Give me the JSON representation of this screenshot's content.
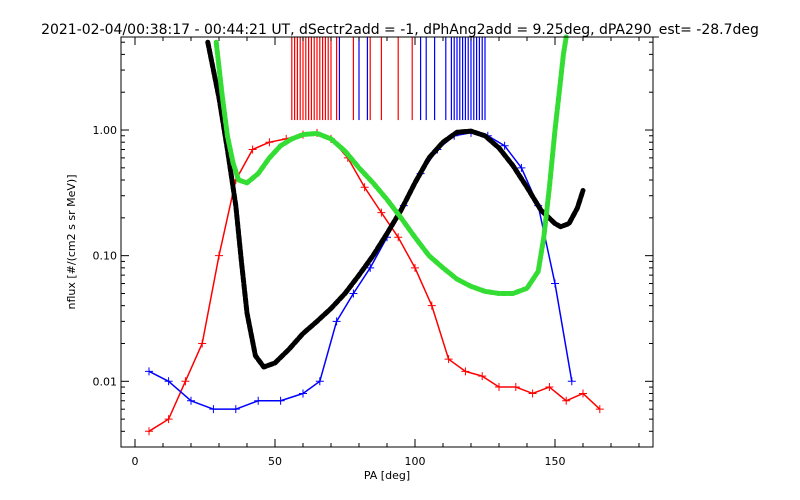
{
  "chart_data": {
    "type": "line",
    "title": "2021-02-04/00:38:17 - 00:44:21 UT, dSectr2add = -1, dPhAng2add = 9.25deg, dPA290_est= -28.7deg",
    "xlabel": "PA [deg]",
    "ylabel": "nflux [#/(cm2 s sr MeV)]",
    "xlim": [
      -5,
      185
    ],
    "ylim": [
      0.003,
      5.5
    ],
    "yscale": "log",
    "xticks": [
      "0",
      "50",
      "100",
      "150"
    ],
    "yticks": [
      "1.00",
      "0.10",
      "0.01"
    ],
    "grid": false,
    "series": [
      {
        "color": "#ff0000",
        "style": "lines with plus markers",
        "x": [
          5,
          12,
          18,
          24,
          30,
          36,
          42,
          48,
          54,
          60,
          65,
          70,
          76,
          82,
          88,
          94,
          100,
          106,
          112,
          118,
          124,
          130,
          136,
          142,
          148,
          154,
          160,
          166
        ],
        "values": [
          0.004,
          0.005,
          0.01,
          0.02,
          0.1,
          0.4,
          0.7,
          0.8,
          0.85,
          0.92,
          0.95,
          0.85,
          0.6,
          0.35,
          0.22,
          0.14,
          0.08,
          0.04,
          0.015,
          0.012,
          0.011,
          0.009,
          0.009,
          0.008,
          0.009,
          0.007,
          0.008,
          0.006
        ]
      },
      {
        "color": "#0000ff",
        "style": "lines with plus markers",
        "x": [
          5,
          12,
          20,
          28,
          36,
          44,
          52,
          60,
          66,
          72,
          78,
          84,
          90,
          96,
          102,
          108,
          114,
          120,
          126,
          132,
          138,
          144,
          150,
          156
        ],
        "values": [
          0.012,
          0.01,
          0.007,
          0.006,
          0.006,
          0.007,
          0.007,
          0.008,
          0.01,
          0.03,
          0.05,
          0.08,
          0.14,
          0.25,
          0.45,
          0.7,
          0.9,
          0.95,
          0.9,
          0.75,
          0.5,
          0.25,
          0.06,
          0.01
        ]
      },
      {
        "color": "#000000",
        "style": "thick dashed",
        "x": [
          26,
          30,
          33,
          36,
          38,
          40,
          43,
          46,
          50,
          55,
          60,
          65,
          70,
          75,
          80,
          85,
          90,
          95,
          100,
          105,
          110,
          115,
          120,
          125,
          130,
          135,
          140,
          145,
          150,
          152,
          155,
          158,
          160
        ],
        "values": [
          5.0,
          1.8,
          0.7,
          0.25,
          0.09,
          0.035,
          0.016,
          0.013,
          0.014,
          0.018,
          0.024,
          0.03,
          0.038,
          0.05,
          0.07,
          0.1,
          0.15,
          0.23,
          0.38,
          0.6,
          0.8,
          0.96,
          0.98,
          0.9,
          0.72,
          0.52,
          0.35,
          0.23,
          0.18,
          0.17,
          0.18,
          0.24,
          0.33
        ]
      },
      {
        "color": "#33dd33",
        "style": "thick dashed",
        "x": [
          29,
          31,
          33,
          35,
          37,
          40,
          44,
          48,
          52,
          56,
          60,
          65,
          70,
          75,
          80,
          85,
          90,
          95,
          100,
          105,
          110,
          115,
          120,
          125,
          130,
          135,
          140,
          144,
          146,
          148,
          150,
          152,
          153,
          154
        ],
        "values": [
          5.0,
          2.0,
          0.9,
          0.55,
          0.4,
          0.38,
          0.45,
          0.6,
          0.75,
          0.85,
          0.92,
          0.94,
          0.85,
          0.68,
          0.5,
          0.38,
          0.28,
          0.2,
          0.14,
          0.1,
          0.08,
          0.065,
          0.057,
          0.052,
          0.05,
          0.05,
          0.055,
          0.075,
          0.14,
          0.35,
          1.0,
          2.5,
          4.0,
          5.5
        ]
      }
    ],
    "vertical_markers": [
      {
        "color": "#ff0000",
        "x": [
          56,
          57,
          58,
          59,
          60,
          61,
          62,
          63,
          64,
          65,
          66,
          67,
          68,
          69,
          70,
          72,
          78,
          84,
          88,
          94,
          99
        ]
      },
      {
        "color": "#0000ff",
        "x": [
          73,
          80,
          83,
          102,
          104,
          107,
          111,
          113,
          114,
          115,
          116,
          117,
          118,
          119,
          120,
          121,
          122,
          123,
          124,
          125
        ]
      }
    ]
  }
}
